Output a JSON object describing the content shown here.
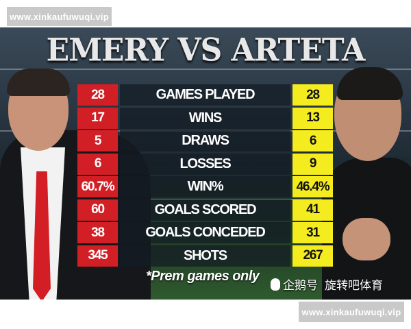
{
  "watermarks": {
    "top": "www.xinkaufuwuqi.vip",
    "bottom": "www.xinkaufuwuqi.vip"
  },
  "graphic": {
    "title": "EMERY VS ARTETA",
    "colors": {
      "emery": "#d21f26",
      "arteta": "#f4ec1f"
    },
    "rows": [
      {
        "stat": "GAMES PLAYED",
        "emery": "28",
        "arteta": "28"
      },
      {
        "stat": "WINS",
        "emery": "17",
        "arteta": "13"
      },
      {
        "stat": "DRAWS",
        "emery": "5",
        "arteta": "6"
      },
      {
        "stat": "LOSSES",
        "emery": "6",
        "arteta": "9"
      },
      {
        "stat": "WIN%",
        "emery": "60.7%",
        "arteta": "46.4%"
      },
      {
        "stat": "GOALS SCORED",
        "emery": "60",
        "arteta": "41"
      },
      {
        "stat": "GOALS CONCEDED",
        "emery": "38",
        "arteta": "31"
      },
      {
        "stat": "SHOTS",
        "emery": "345",
        "arteta": "267"
      }
    ],
    "footnote": "*Prem games only",
    "source": {
      "icon": "penguin-icon",
      "platform": "企鹅号",
      "account": "旋转吧体育"
    }
  }
}
